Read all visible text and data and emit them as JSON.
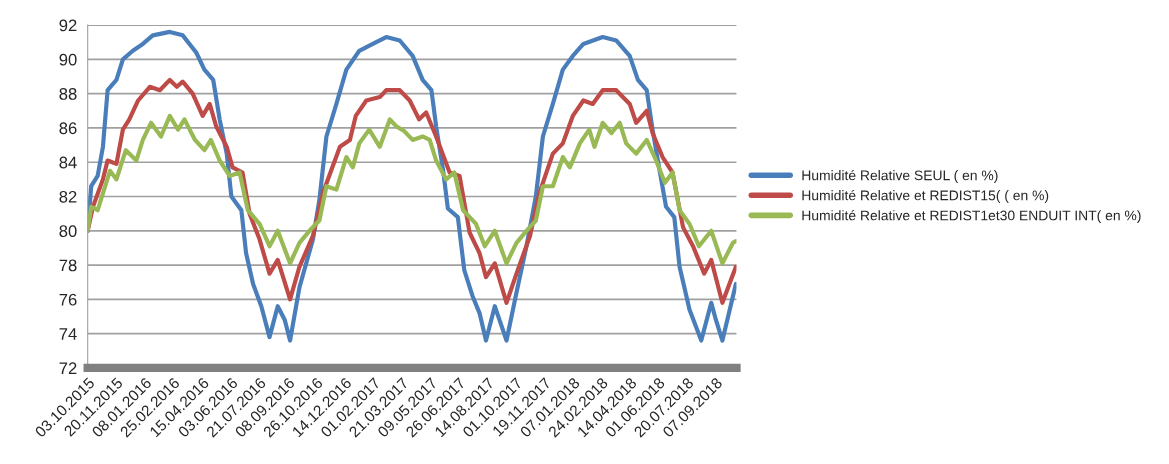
{
  "chart_data": {
    "type": "line",
    "xlim": [
      "2015-10-03",
      "2018-10-13"
    ],
    "ylim": [
      72,
      92
    ],
    "yticks": [
      72,
      74,
      76,
      78,
      80,
      82,
      84,
      86,
      88,
      90,
      92
    ],
    "xticks": [
      {
        "value": "2015-10-03",
        "label": "03.10.2015"
      },
      {
        "value": "2015-11-20",
        "label": "20.11.2015"
      },
      {
        "value": "2016-01-08",
        "label": "08.01.2016"
      },
      {
        "value": "2016-02-25",
        "label": "25.02.2016"
      },
      {
        "value": "2016-04-15",
        "label": "15.04.2016"
      },
      {
        "value": "2016-06-03",
        "label": "03.06.2016"
      },
      {
        "value": "2016-07-21",
        "label": "21.07.2016"
      },
      {
        "value": "2016-09-08",
        "label": "08.09.2016"
      },
      {
        "value": "2016-10-26",
        "label": "26.10.2016"
      },
      {
        "value": "2016-12-14",
        "label": "14.12.2016"
      },
      {
        "value": "2017-02-01",
        "label": "01.02.2017"
      },
      {
        "value": "2017-03-21",
        "label": "21.03.2017"
      },
      {
        "value": "2017-05-09",
        "label": "09.05.2017"
      },
      {
        "value": "2017-06-26",
        "label": "26.06.2017"
      },
      {
        "value": "2017-08-14",
        "label": "14.08.2017"
      },
      {
        "value": "2017-10-01",
        "label": "01.10.2017"
      },
      {
        "value": "2017-11-19",
        "label": "19.11.2017"
      },
      {
        "value": "2018-01-07",
        "label": "07.01.2018"
      },
      {
        "value": "2018-02-24",
        "label": "24.02.2018"
      },
      {
        "value": "2018-04-14",
        "label": "14.04.2018"
      },
      {
        "value": "2018-06-01",
        "label": "01.06.2018"
      },
      {
        "value": "2018-07-20",
        "label": "20.07.2018"
      },
      {
        "value": "2018-09-07",
        "label": "07.09.2018"
      }
    ],
    "grid": "y",
    "legend": "right",
    "line_style": "solid",
    "marker": "none",
    "series": [
      {
        "name": "Humidité Relative SEUL ( en %)",
        "color": "#4a7ebb",
        "x": [
          "2015-10-03",
          "2015-10-09",
          "2015-10-20",
          "2015-10-29",
          "2015-11-06",
          "2015-11-21",
          "2015-12-02",
          "2015-12-19",
          "2016-01-05",
          "2016-01-22",
          "2016-02-20",
          "2016-03-13",
          "2016-04-05",
          "2016-04-19",
          "2016-05-04",
          "2016-05-15",
          "2016-05-27",
          "2016-06-04",
          "2016-06-21",
          "2016-06-29",
          "2016-07-11",
          "2016-07-25",
          "2016-08-08",
          "2016-08-22",
          "2016-09-03",
          "2016-09-12",
          "2016-09-28",
          "2016-10-21",
          "2016-11-01",
          "2016-11-13",
          "2016-11-30",
          "2016-12-17",
          "2017-01-08",
          "2017-01-31",
          "2017-02-23",
          "2017-03-18",
          "2017-04-09",
          "2017-04-26",
          "2017-05-11",
          "2017-05-19",
          "2017-05-31",
          "2017-06-08",
          "2017-06-25",
          "2017-07-06",
          "2017-07-20",
          "2017-08-01",
          "2017-08-12",
          "2017-08-27",
          "2017-09-04",
          "2017-09-16",
          "2017-10-03",
          "2017-10-20",
          "2017-11-05",
          "2017-11-17",
          "2017-12-04",
          "2017-12-21",
          "2018-01-07",
          "2018-01-25",
          "2018-02-27",
          "2018-03-22",
          "2018-04-14",
          "2018-04-28",
          "2018-05-13",
          "2018-05-23",
          "2018-06-03",
          "2018-06-15",
          "2018-06-29",
          "2018-07-08",
          "2018-07-25",
          "2018-08-14",
          "2018-08-31",
          "2018-09-08",
          "2018-09-19",
          "2018-10-12"
        ],
        "values": [
          80.0,
          82.6,
          83.2,
          84.9,
          88.2,
          88.8,
          90.0,
          90.5,
          90.9,
          91.4,
          91.6,
          91.4,
          90.4,
          89.4,
          88.8,
          86.5,
          84.5,
          82.0,
          81.2,
          78.7,
          76.9,
          75.6,
          73.8,
          75.6,
          74.8,
          73.6,
          76.7,
          79.5,
          81.8,
          85.5,
          87.4,
          89.4,
          90.5,
          90.9,
          91.3,
          91.1,
          90.2,
          88.8,
          88.2,
          86.1,
          83.5,
          81.3,
          80.8,
          77.7,
          76.2,
          75.2,
          73.6,
          75.6,
          74.8,
          73.6,
          76.4,
          79.1,
          82.0,
          85.5,
          87.4,
          89.4,
          90.2,
          90.9,
          91.3,
          91.1,
          90.2,
          88.8,
          88.2,
          85.9,
          83.7,
          81.4,
          80.8,
          77.9,
          75.4,
          73.6,
          75.8,
          74.8,
          73.6,
          76.9
        ]
      },
      {
        "name": "Humidité Relative et REDIST15( ( en %)",
        "color": "#be4b48",
        "x": [
          "2015-10-03",
          "2015-10-12",
          "2015-10-29",
          "2015-11-06",
          "2015-11-21",
          "2015-12-02",
          "2015-12-13",
          "2015-12-28",
          "2016-01-17",
          "2016-02-03",
          "2016-02-20",
          "2016-03-03",
          "2016-03-13",
          "2016-03-30",
          "2016-04-16",
          "2016-04-28",
          "2016-05-09",
          "2016-05-27",
          "2016-06-06",
          "2016-06-23",
          "2016-07-05",
          "2016-07-22",
          "2016-08-08",
          "2016-08-22",
          "2016-09-12",
          "2016-09-28",
          "2016-10-21",
          "2016-11-07",
          "2016-12-06",
          "2016-12-23",
          "2017-01-02",
          "2017-01-20",
          "2017-02-12",
          "2017-02-23",
          "2017-03-18",
          "2017-04-04",
          "2017-04-20",
          "2017-05-02",
          "2017-05-19",
          "2017-06-11",
          "2017-06-28",
          "2017-07-15",
          "2017-08-01",
          "2017-08-12",
          "2017-08-27",
          "2017-09-16",
          "2017-10-03",
          "2017-10-26",
          "2017-11-11",
          "2017-12-04",
          "2017-12-21",
          "2018-01-07",
          "2018-01-25",
          "2018-02-10",
          "2018-02-27",
          "2018-03-22",
          "2018-04-14",
          "2018-04-25",
          "2018-05-13",
          "2018-05-23",
          "2018-06-09",
          "2018-06-26",
          "2018-07-14",
          "2018-07-31",
          "2018-08-19",
          "2018-08-31",
          "2018-09-19",
          "2018-10-12"
        ],
        "values": [
          80.0,
          81.4,
          83.0,
          84.1,
          83.9,
          85.9,
          86.5,
          87.6,
          88.4,
          88.2,
          88.8,
          88.4,
          88.7,
          88.0,
          86.7,
          87.4,
          86.1,
          84.9,
          83.7,
          83.4,
          81.0,
          79.5,
          77.5,
          78.3,
          76.0,
          77.9,
          79.7,
          82.2,
          84.9,
          85.3,
          86.7,
          87.6,
          87.8,
          88.2,
          88.2,
          87.6,
          86.5,
          86.9,
          85.5,
          83.4,
          83.2,
          79.9,
          78.7,
          77.3,
          78.1,
          75.8,
          77.5,
          79.7,
          82.2,
          84.5,
          85.1,
          86.7,
          87.6,
          87.4,
          88.2,
          88.2,
          87.4,
          86.3,
          87.0,
          85.7,
          84.3,
          83.4,
          80.2,
          79.1,
          77.5,
          78.3,
          75.8,
          77.9
        ]
      },
      {
        "name": "Humidité Relative et REDIST1et30 ENDUIT INT( en %)",
        "color": "#98b954",
        "x": [
          "2015-10-03",
          "2015-10-09",
          "2015-10-20",
          "2015-11-10",
          "2015-11-21",
          "2015-12-07",
          "2015-12-25",
          "2016-01-05",
          "2016-01-19",
          "2016-02-05",
          "2016-02-20",
          "2016-03-05",
          "2016-03-16",
          "2016-04-03",
          "2016-04-19",
          "2016-04-30",
          "2016-05-15",
          "2016-06-01",
          "2016-06-18",
          "2016-07-02",
          "2016-07-22",
          "2016-08-08",
          "2016-08-22",
          "2016-09-12",
          "2016-09-28",
          "2016-10-15",
          "2016-11-01",
          "2016-11-13",
          "2016-11-30",
          "2016-12-17",
          "2016-12-28",
          "2017-01-08",
          "2017-01-25",
          "2017-02-12",
          "2017-03-01",
          "2017-03-12",
          "2017-03-26",
          "2017-04-09",
          "2017-04-26",
          "2017-05-08",
          "2017-05-19",
          "2017-06-05",
          "2017-06-19",
          "2017-07-04",
          "2017-07-26",
          "2017-08-10",
          "2017-08-27",
          "2017-09-16",
          "2017-10-03",
          "2017-10-20",
          "2017-11-05",
          "2017-11-17",
          "2017-12-04",
          "2017-12-21",
          "2018-01-02",
          "2018-01-19",
          "2018-02-04",
          "2018-02-13",
          "2018-02-27",
          "2018-03-14",
          "2018-03-28",
          "2018-04-08",
          "2018-04-25",
          "2018-05-13",
          "2018-05-29",
          "2018-06-13",
          "2018-06-26",
          "2018-07-08",
          "2018-07-25",
          "2018-08-10",
          "2018-08-31",
          "2018-09-19",
          "2018-10-07",
          "2018-10-12"
        ],
        "values": [
          80.0,
          81.4,
          81.2,
          83.5,
          83.0,
          84.7,
          84.1,
          85.3,
          86.3,
          85.5,
          86.7,
          85.9,
          86.5,
          85.3,
          84.7,
          85.3,
          84.1,
          83.2,
          83.4,
          81.2,
          80.4,
          79.1,
          80.0,
          78.1,
          79.3,
          80.0,
          80.6,
          82.6,
          82.4,
          84.3,
          83.7,
          85.1,
          85.9,
          84.9,
          86.5,
          86.1,
          85.8,
          85.3,
          85.5,
          85.3,
          84.1,
          83.0,
          83.4,
          81.2,
          80.4,
          79.1,
          80.0,
          78.1,
          79.3,
          80.0,
          80.6,
          82.6,
          82.6,
          84.3,
          83.7,
          85.1,
          85.9,
          84.9,
          86.3,
          85.7,
          86.3,
          85.1,
          84.5,
          85.3,
          84.1,
          82.8,
          83.4,
          81.2,
          80.4,
          79.1,
          80.0,
          78.1,
          79.3,
          79.4
        ]
      }
    ]
  }
}
